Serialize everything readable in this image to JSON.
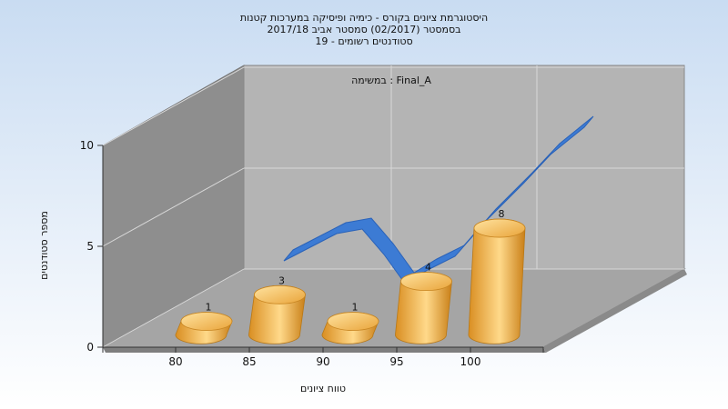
{
  "title": {
    "line1": "היסטוגרמת ציונים בקורס - כימיה ופיסיקה במערכות קטנות",
    "line2": "בסמסטר  (02/2017)  סמסטר אביב 2017/18",
    "line3": "סטודנטים רשומים - 19"
  },
  "chart_data": {
    "type": "bar",
    "title": "היסטוגרמת ציונים בקורס - כימיה ופיסיקה במערכות קטנות",
    "categories": [
      "80",
      "85",
      "90",
      "95",
      "100"
    ],
    "values": [
      1,
      3,
      1,
      4,
      8
    ],
    "annotation": "במשימה : Final_A",
    "xlabel": "טווח ציונים",
    "ylabel": "מספר סטודנטים",
    "ylim": [
      0,
      10
    ],
    "yticks": [
      "0",
      "5",
      "10"
    ],
    "grid": true,
    "colors": {
      "bar": "#e8a53a",
      "bar_light": "#ffd98a",
      "curve": "#3c7bd4",
      "floor": "#a0a0a0",
      "back_wall": "#b8b8b8",
      "side_wall": "#909090"
    }
  }
}
